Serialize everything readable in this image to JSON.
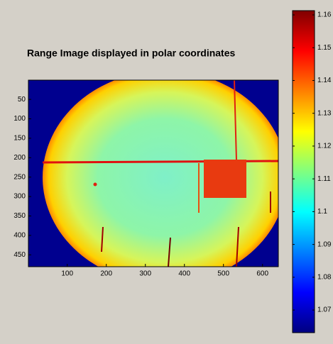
{
  "chart_data": {
    "type": "heatmap",
    "title": "Range Image displayed in polar coordinates",
    "xlim": [
      0.5,
      640.5
    ],
    "ylim": [
      0.5,
      480.5
    ],
    "xticks": [
      100,
      200,
      300,
      400,
      500,
      600
    ],
    "yticks": [
      50,
      100,
      150,
      200,
      250,
      300,
      350,
      400,
      450
    ],
    "colormap": "jet",
    "colorbar": {
      "clim": [
        1.0631,
        1.1613
      ],
      "ticks": [
        1.07,
        1.08,
        1.09,
        1.1,
        1.11,
        1.12,
        1.13,
        1.14,
        1.15,
        1.16
      ]
    }
  }
}
